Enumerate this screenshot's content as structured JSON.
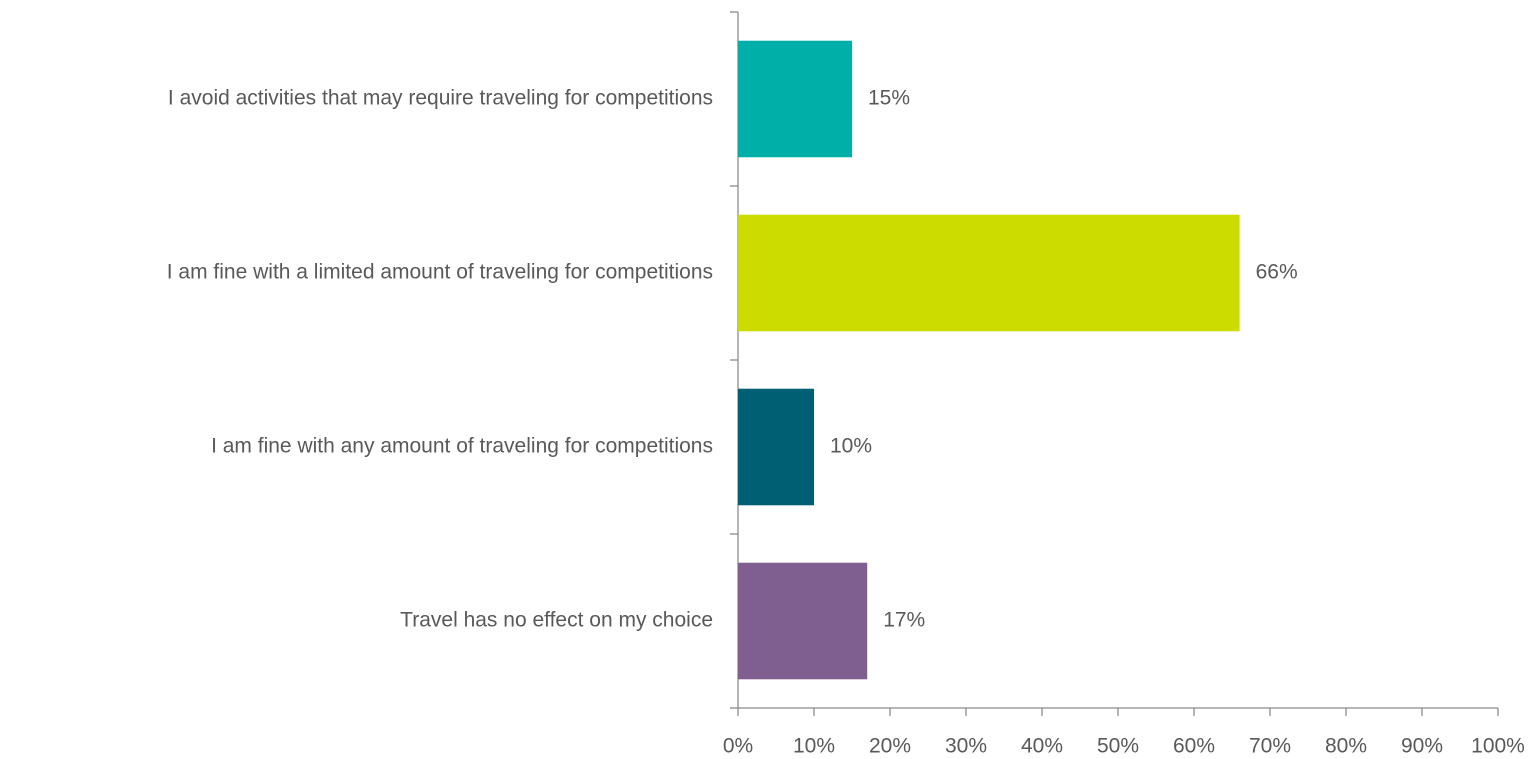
{
  "chart_data": {
    "type": "hbar",
    "categories": [
      "I avoid activities that may require traveling for competitions",
      "I am fine with a limited amount of traveling for competitions",
      "I am fine with any amount of traveling for competitions",
      "Travel has no effect on my choice"
    ],
    "values": [
      15,
      66,
      10,
      17
    ],
    "value_labels": [
      "15%",
      "66%",
      "10%",
      "17%"
    ],
    "colors": [
      "#00b0a8",
      "#cddc00",
      "#005f73",
      "#7f5f8f"
    ],
    "xlim": [
      0,
      100
    ],
    "xticks": [
      {
        "value": 0,
        "label": "0%"
      },
      {
        "value": 10,
        "label": "10%"
      },
      {
        "value": 20,
        "label": "20%"
      },
      {
        "value": 30,
        "label": "30%"
      },
      {
        "value": 40,
        "label": "40%"
      },
      {
        "value": 50,
        "label": "50%"
      },
      {
        "value": 60,
        "label": "60%"
      },
      {
        "value": 70,
        "label": "70%"
      },
      {
        "value": 80,
        "label": "80%"
      },
      {
        "value": 90,
        "label": "90%"
      },
      {
        "value": 100,
        "label": "100%"
      }
    ],
    "grid": false
  }
}
